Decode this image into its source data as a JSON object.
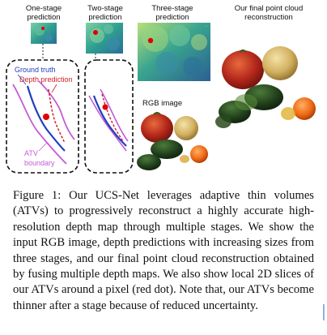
{
  "figure": {
    "labels": {
      "one_stage": "One-stage prediction",
      "two_stage": "Two-stage prediction",
      "three_stage": "Three-stage prediction",
      "final": "Our final point cloud reconstruction",
      "rgb": "RGB image",
      "ground_truth": "Ground truth",
      "depth_prediction": "Depth prediction",
      "atv_boundary_line1": "ATV",
      "atv_boundary_line2": "boundary"
    },
    "colors": {
      "ground_truth": "#1f3fbf",
      "depth_prediction": "#d0202a",
      "atv_boundary": "#c45bd6",
      "red_dot": "#e00000",
      "depth_map_teal": "#2f9e8f"
    }
  },
  "caption": {
    "text": "Figure 1: Our UCS-Net leverages adaptive thin volumes (ATVs) to progressively reconstruct a highly accurate high-resolution depth map through multiple stages. We show the input RGB image, depth predictions with increasing sizes from three stages, and our final point cloud reconstruction obtained by fusing multiple depth maps. We also show local 2D slices of our ATVs around a pixel (red dot). Note that, our ATVs become thinner after a stage because of reduced uncertainty."
  }
}
